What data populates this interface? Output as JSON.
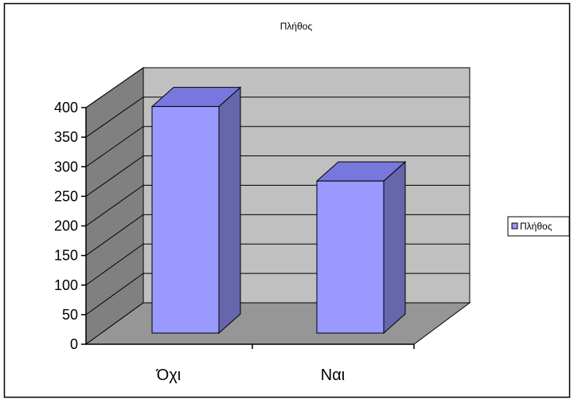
{
  "chart_data": {
    "type": "bar",
    "title": "Πλήθος",
    "categories": [
      "Όχι",
      "Ναι"
    ],
    "series": [
      {
        "name": "Πλήθος",
        "values": [
          383,
          257
        ],
        "color": "#9999ff"
      }
    ],
    "ylim": [
      0,
      400
    ],
    "yticks": [
      "0",
      "50",
      "100",
      "150",
      "200",
      "250",
      "300",
      "350",
      "400"
    ],
    "grid": true,
    "legend": "right",
    "colors": {
      "bar_front": "#9999ff",
      "bar_top": "#7777dd",
      "bar_side": "#6666aa",
      "back_wall": "#c0c0c0",
      "side_wall": "#808080",
      "floor": "#969696"
    }
  }
}
